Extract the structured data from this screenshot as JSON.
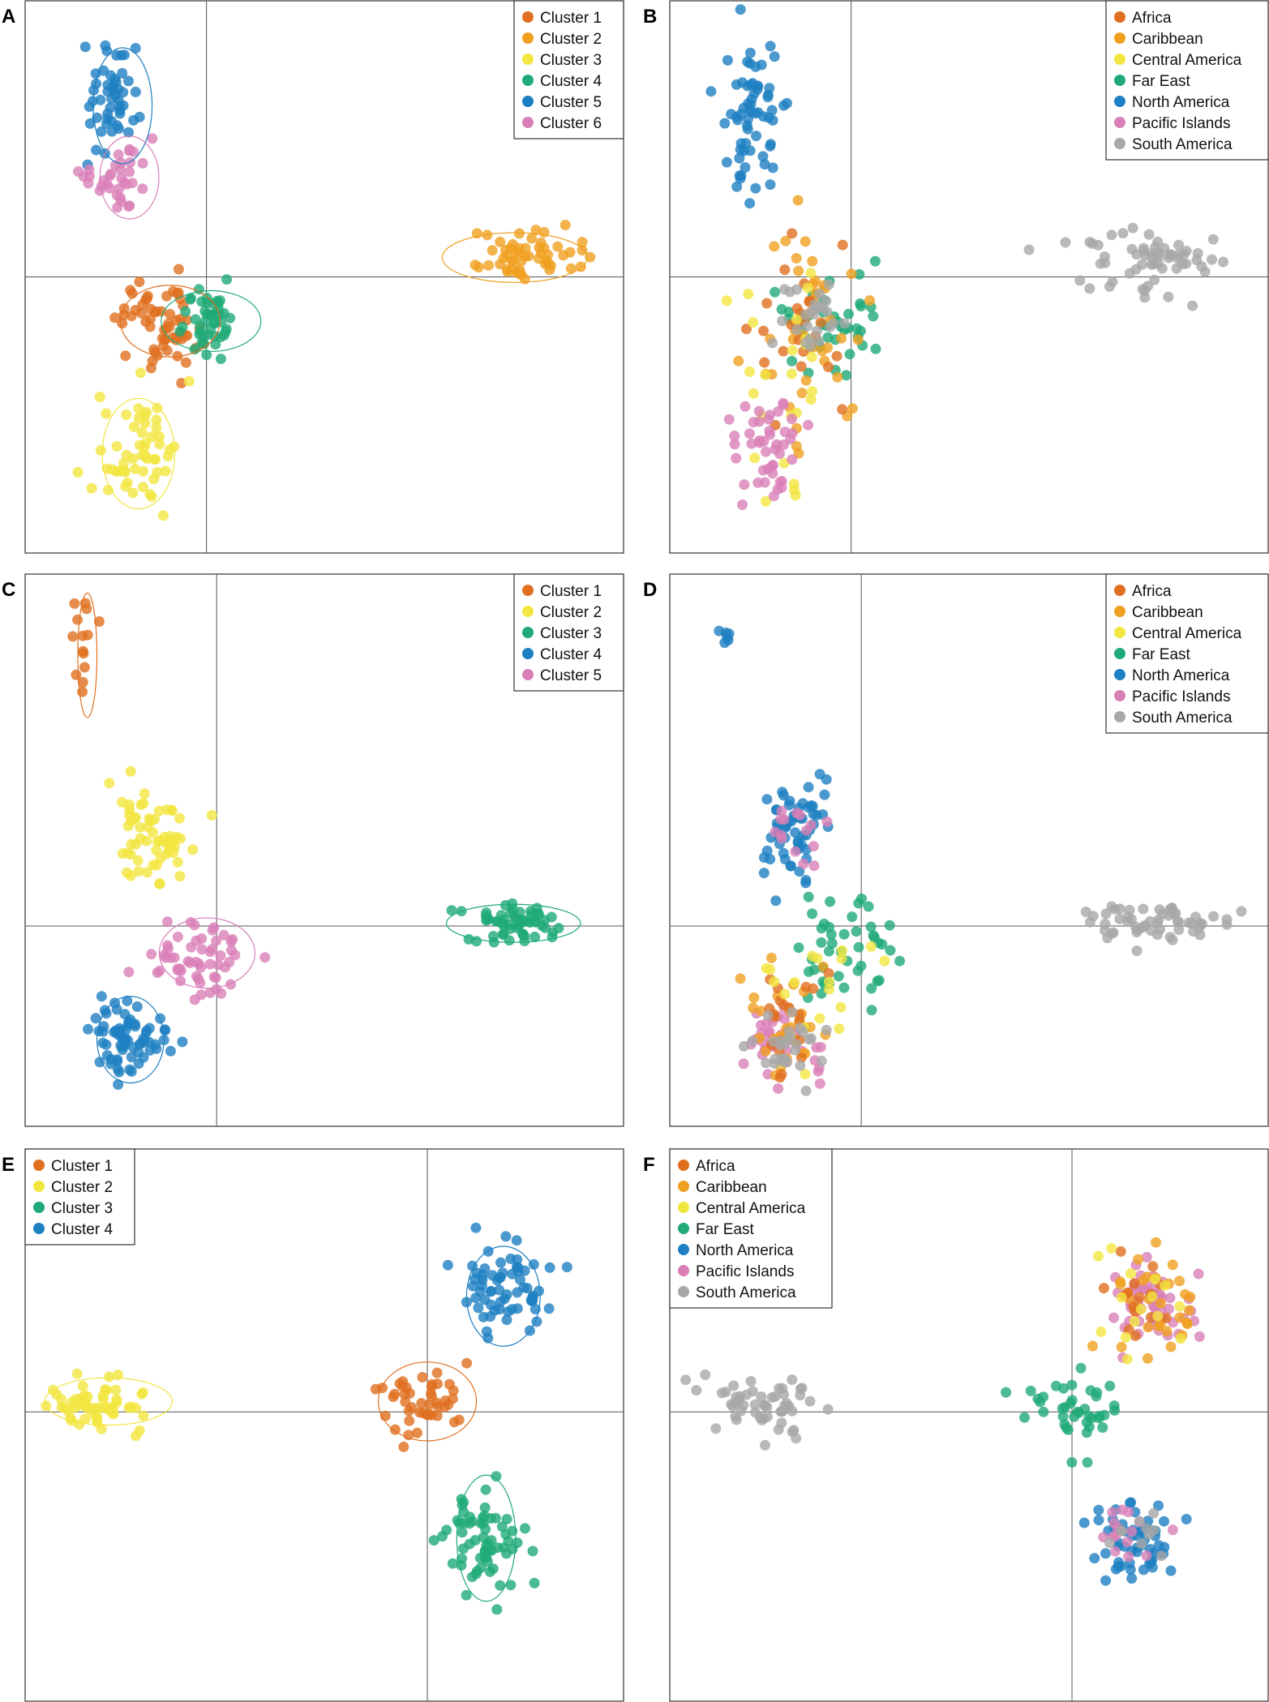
{
  "colors": {
    "c_orange": "#E07020",
    "c_amber": "#F0A020",
    "c_yellow": "#F2E640",
    "c_green": "#1FAA78",
    "c_blue": "#1E7FC2",
    "c_pink": "#D97FB8",
    "c_gray": "#A8A8A8",
    "axis": "#555555",
    "frame": "#333333"
  },
  "chart_data": [
    {
      "type": "scatter",
      "panel": "A",
      "axis_x": 0,
      "axis_y": 0,
      "xlim": [
        -4,
        9.2
      ],
      "ylim": [
        -5,
        5
      ],
      "legend_position": "top-right",
      "legend": [
        {
          "label": "Cluster 1",
          "color": "#E07020"
        },
        {
          "label": "Cluster 2",
          "color": "#F0A020"
        },
        {
          "label": "Cluster 3",
          "color": "#F2E640"
        },
        {
          "label": "Cluster 4",
          "color": "#1FAA78"
        },
        {
          "label": "Cluster 5",
          "color": "#1E7FC2"
        },
        {
          "label": "Cluster 6",
          "color": "#D97FB8"
        }
      ],
      "groups": [
        {
          "name": "Cluster 1",
          "color": "#E07020",
          "center": [
            -1,
            -0.8
          ],
          "spread": [
            0.45,
            0.45
          ],
          "n": 60,
          "ellipse": [
            -0.8,
            -0.8,
            1.1,
            0.65
          ]
        },
        {
          "name": "Cluster 2",
          "color": "#F0A020",
          "center": [
            6.9,
            0.35
          ],
          "spread": [
            0.6,
            0.22
          ],
          "n": 55,
          "ellipse": [
            6.8,
            0.35,
            1.6,
            0.45
          ]
        },
        {
          "name": "Cluster 3",
          "color": "#F2E640",
          "center": [
            -1.6,
            -3.1
          ],
          "spread": [
            0.45,
            0.5
          ],
          "n": 55,
          "ellipse": [
            -1.5,
            -3.2,
            0.8,
            1.0
          ]
        },
        {
          "name": "Cluster 4",
          "color": "#1FAA78",
          "center": [
            0.1,
            -0.8
          ],
          "spread": [
            0.35,
            0.35
          ],
          "n": 45,
          "ellipse": [
            0.1,
            -0.8,
            1.1,
            0.55
          ]
        },
        {
          "name": "Cluster 5",
          "color": "#1E7FC2",
          "center": [
            -2.1,
            3.2
          ],
          "spread": [
            0.3,
            0.5
          ],
          "n": 50,
          "ellipse": [
            -1.85,
            3.1,
            0.65,
            1.05
          ]
        },
        {
          "name": "Cluster 6",
          "color": "#D97FB8",
          "center": [
            -1.9,
            1.8
          ],
          "spread": [
            0.35,
            0.3
          ],
          "n": 35,
          "ellipse": [
            -1.7,
            1.8,
            0.65,
            0.75
          ]
        }
      ]
    },
    {
      "type": "scatter",
      "panel": "B",
      "axis_x": 0,
      "axis_y": 0,
      "xlim": [
        -4,
        9.2
      ],
      "ylim": [
        -5,
        5
      ],
      "legend_position": "top-right",
      "legend": [
        {
          "label": "Africa",
          "color": "#E07020"
        },
        {
          "label": "Caribbean",
          "color": "#F0A020"
        },
        {
          "label": "Central America",
          "color": "#F2E640"
        },
        {
          "label": "Far East",
          "color": "#1FAA78"
        },
        {
          "label": "North America",
          "color": "#1E7FC2"
        },
        {
          "label": "Pacific Islands",
          "color": "#D97FB8"
        },
        {
          "label": "South America",
          "color": "#A8A8A8"
        }
      ],
      "groups": [
        {
          "name": "North America",
          "color": "#1E7FC2",
          "center": [
            -2.1,
            2.8
          ],
          "spread": [
            0.35,
            0.8
          ],
          "n": 65
        },
        {
          "name": "Far East",
          "color": "#1FAA78",
          "center": [
            -0.4,
            -0.8
          ],
          "spread": [
            0.6,
            0.5
          ],
          "n": 40
        },
        {
          "name": "Caribbean",
          "color": "#F0A020",
          "center": [
            -1.1,
            -0.9
          ],
          "spread": [
            0.6,
            0.9
          ],
          "n": 40
        },
        {
          "name": "Africa",
          "color": "#E07020",
          "center": [
            -1.2,
            -0.9
          ],
          "spread": [
            0.6,
            0.8
          ],
          "n": 25
        },
        {
          "name": "Central America",
          "color": "#F2E640",
          "center": [
            -1.4,
            -1.5
          ],
          "spread": [
            0.6,
            1.2
          ],
          "n": 25
        },
        {
          "name": "Pacific Islands",
          "color": "#D97FB8",
          "center": [
            -1.8,
            -3.0
          ],
          "spread": [
            0.45,
            0.45
          ],
          "n": 45
        },
        {
          "name": "South America",
          "color": "#A8A8A8",
          "center": [
            6.5,
            0.35
          ],
          "spread": [
            0.9,
            0.3
          ],
          "n": 60
        },
        {
          "name": "South America",
          "color": "#A8A8A8",
          "center": [
            -0.8,
            -0.8
          ],
          "spread": [
            0.4,
            0.3
          ],
          "n": 25
        }
      ]
    },
    {
      "type": "scatter",
      "panel": "C",
      "axis_x": 0,
      "axis_y": 0,
      "xlim": [
        -4,
        8.5
      ],
      "ylim": [
        -3.7,
        6.5
      ],
      "legend_position": "top-right",
      "legend": [
        {
          "label": "Cluster 1",
          "color": "#E07020"
        },
        {
          "label": "Cluster 2",
          "color": "#F2E640"
        },
        {
          "label": "Cluster 3",
          "color": "#1FAA78"
        },
        {
          "label": "Cluster 4",
          "color": "#1E7FC2"
        },
        {
          "label": "Cluster 5",
          "color": "#D97FB8"
        }
      ],
      "groups": [
        {
          "name": "Cluster 1",
          "color": "#E07020",
          "center": [
            -2.75,
            5.1
          ],
          "spread": [
            0.12,
            0.6
          ],
          "n": 14,
          "ellipse": [
            -2.7,
            5.0,
            0.2,
            1.15
          ]
        },
        {
          "name": "Cluster 2",
          "color": "#F2E640",
          "center": [
            -1.3,
            1.7
          ],
          "spread": [
            0.4,
            0.5
          ],
          "n": 60
        },
        {
          "name": "Cluster 3",
          "color": "#1FAA78",
          "center": [
            6.3,
            0.05
          ],
          "spread": [
            0.6,
            0.18
          ],
          "n": 55,
          "ellipse": [
            6.2,
            0.05,
            1.4,
            0.35
          ]
        },
        {
          "name": "Cluster 4",
          "color": "#1E7FC2",
          "center": [
            -1.9,
            -2.1
          ],
          "spread": [
            0.45,
            0.4
          ],
          "n": 70,
          "ellipse": [
            -1.8,
            -2.1,
            0.7,
            0.8
          ]
        },
        {
          "name": "Cluster 5",
          "color": "#D97FB8",
          "center": [
            -0.4,
            -0.5
          ],
          "spread": [
            0.5,
            0.35
          ],
          "n": 55,
          "ellipse": [
            -0.2,
            -0.5,
            1.0,
            0.65
          ]
        }
      ]
    },
    {
      "type": "scatter",
      "panel": "D",
      "axis_x": 0,
      "axis_y": 0,
      "xlim": [
        -4,
        8.5
      ],
      "ylim": [
        -3.7,
        6.5
      ],
      "legend_position": "top-right",
      "legend": [
        {
          "label": "Africa",
          "color": "#E07020"
        },
        {
          "label": "Caribbean",
          "color": "#F0A020"
        },
        {
          "label": "Central America",
          "color": "#F2E640"
        },
        {
          "label": "Far East",
          "color": "#1FAA78"
        },
        {
          "label": "North America",
          "color": "#1E7FC2"
        },
        {
          "label": "Pacific Islands",
          "color": "#D97FB8"
        },
        {
          "label": "South America",
          "color": "#A8A8A8"
        }
      ],
      "groups": [
        {
          "name": "North America",
          "color": "#1E7FC2",
          "center": [
            -1.4,
            1.7
          ],
          "spread": [
            0.35,
            0.5
          ],
          "n": 60
        },
        {
          "name": "North America",
          "color": "#1E7FC2",
          "center": [
            -2.9,
            5.3
          ],
          "spread": [
            0.1,
            0.25
          ],
          "n": 6
        },
        {
          "name": "Pacific Islands",
          "color": "#D97FB8",
          "center": [
            -1.4,
            1.7
          ],
          "spread": [
            0.3,
            0.3
          ],
          "n": 15
        },
        {
          "name": "Pacific Islands",
          "color": "#D97FB8",
          "center": [
            -1.8,
            -2.2
          ],
          "spread": [
            0.4,
            0.35
          ],
          "n": 40
        },
        {
          "name": "Far East",
          "color": "#1FAA78",
          "center": [
            -0.2,
            -0.5
          ],
          "spread": [
            0.6,
            0.6
          ],
          "n": 45
        },
        {
          "name": "Caribbean",
          "color": "#F0A020",
          "center": [
            -1.6,
            -1.9
          ],
          "spread": [
            0.45,
            0.55
          ],
          "n": 30
        },
        {
          "name": "Africa",
          "color": "#E07020",
          "center": [
            -1.4,
            -1.6
          ],
          "spread": [
            0.5,
            0.6
          ],
          "n": 20
        },
        {
          "name": "Central America",
          "color": "#F2E640",
          "center": [
            -1.0,
            -1.0
          ],
          "spread": [
            0.7,
            0.7
          ],
          "n": 20
        },
        {
          "name": "South America",
          "color": "#A8A8A8",
          "center": [
            6.2,
            0.05
          ],
          "spread": [
            0.8,
            0.2
          ],
          "n": 55
        },
        {
          "name": "South America",
          "color": "#A8A8A8",
          "center": [
            -1.7,
            -2.2
          ],
          "spread": [
            0.4,
            0.3
          ],
          "n": 30
        }
      ]
    },
    {
      "type": "scatter",
      "panel": "E",
      "axis_x": 0,
      "axis_y": 0,
      "xlim": [
        -8.2,
        4
      ],
      "ylim": [
        -5.5,
        5
      ],
      "legend_position": "top-left",
      "legend": [
        {
          "label": "Cluster 1",
          "color": "#E07020"
        },
        {
          "label": "Cluster 2",
          "color": "#F2E640"
        },
        {
          "label": "Cluster 3",
          "color": "#1FAA78"
        },
        {
          "label": "Cluster 4",
          "color": "#1E7FC2"
        }
      ],
      "groups": [
        {
          "name": "Cluster 1",
          "color": "#E07020",
          "center": [
            0,
            0.2
          ],
          "spread": [
            0.45,
            0.35
          ],
          "n": 45,
          "ellipse": [
            0,
            0.2,
            1.0,
            0.75
          ]
        },
        {
          "name": "Cluster 2",
          "color": "#F2E640",
          "center": [
            -6.7,
            0.2
          ],
          "spread": [
            0.6,
            0.25
          ],
          "n": 55,
          "ellipse": [
            -6.5,
            0.2,
            1.3,
            0.45
          ]
        },
        {
          "name": "Cluster 3",
          "color": "#1FAA78",
          "center": [
            1.2,
            -2.4
          ],
          "spread": [
            0.4,
            0.55
          ],
          "n": 65,
          "ellipse": [
            1.2,
            -2.4,
            0.6,
            1.2
          ]
        },
        {
          "name": "Cluster 4",
          "color": "#1E7FC2",
          "center": [
            1.5,
            2.2
          ],
          "spread": [
            0.45,
            0.5
          ],
          "n": 65,
          "ellipse": [
            1.55,
            2.2,
            0.75,
            0.95
          ]
        }
      ]
    },
    {
      "type": "scatter",
      "panel": "F",
      "axis_x": 0,
      "axis_y": 0,
      "xlim": [
        -8.2,
        4
      ],
      "ylim": [
        -5.5,
        5
      ],
      "legend_position": "top-left",
      "legend": [
        {
          "label": "Africa",
          "color": "#E07020"
        },
        {
          "label": "Caribbean",
          "color": "#F0A020"
        },
        {
          "label": "Central America",
          "color": "#F2E640"
        },
        {
          "label": "Far East",
          "color": "#1FAA78"
        },
        {
          "label": "North America",
          "color": "#1E7FC2"
        },
        {
          "label": "Pacific Islands",
          "color": "#D97FB8"
        },
        {
          "label": "South America",
          "color": "#A8A8A8"
        }
      ],
      "groups": [
        {
          "name": "South America",
          "color": "#A8A8A8",
          "center": [
            -6.4,
            0.1
          ],
          "spread": [
            0.7,
            0.3
          ],
          "n": 55
        },
        {
          "name": "Far East",
          "color": "#1FAA78",
          "center": [
            0.0,
            0.1
          ],
          "spread": [
            0.5,
            0.4
          ],
          "n": 40
        },
        {
          "name": "Pacific Islands",
          "color": "#D97FB8",
          "center": [
            1.6,
            2.1
          ],
          "spread": [
            0.45,
            0.45
          ],
          "n": 55
        },
        {
          "name": "Caribbean",
          "color": "#F0A020",
          "center": [
            1.7,
            2.0
          ],
          "spread": [
            0.5,
            0.55
          ],
          "n": 30
        },
        {
          "name": "Africa",
          "color": "#E07020",
          "center": [
            1.4,
            1.8
          ],
          "spread": [
            0.5,
            0.6
          ],
          "n": 15
        },
        {
          "name": "Central America",
          "color": "#F2E640",
          "center": [
            1.5,
            2.0
          ],
          "spread": [
            0.5,
            0.5
          ],
          "n": 15
        },
        {
          "name": "North America",
          "color": "#1E7FC2",
          "center": [
            1.3,
            -2.5
          ],
          "spread": [
            0.4,
            0.45
          ],
          "n": 55
        },
        {
          "name": "Pacific Islands",
          "color": "#D97FB8",
          "center": [
            1.2,
            -2.3
          ],
          "spread": [
            0.3,
            0.3
          ],
          "n": 15
        },
        {
          "name": "South America",
          "color": "#A8A8A8",
          "center": [
            1.2,
            -2.4
          ],
          "spread": [
            0.3,
            0.3
          ],
          "n": 10
        }
      ]
    }
  ]
}
